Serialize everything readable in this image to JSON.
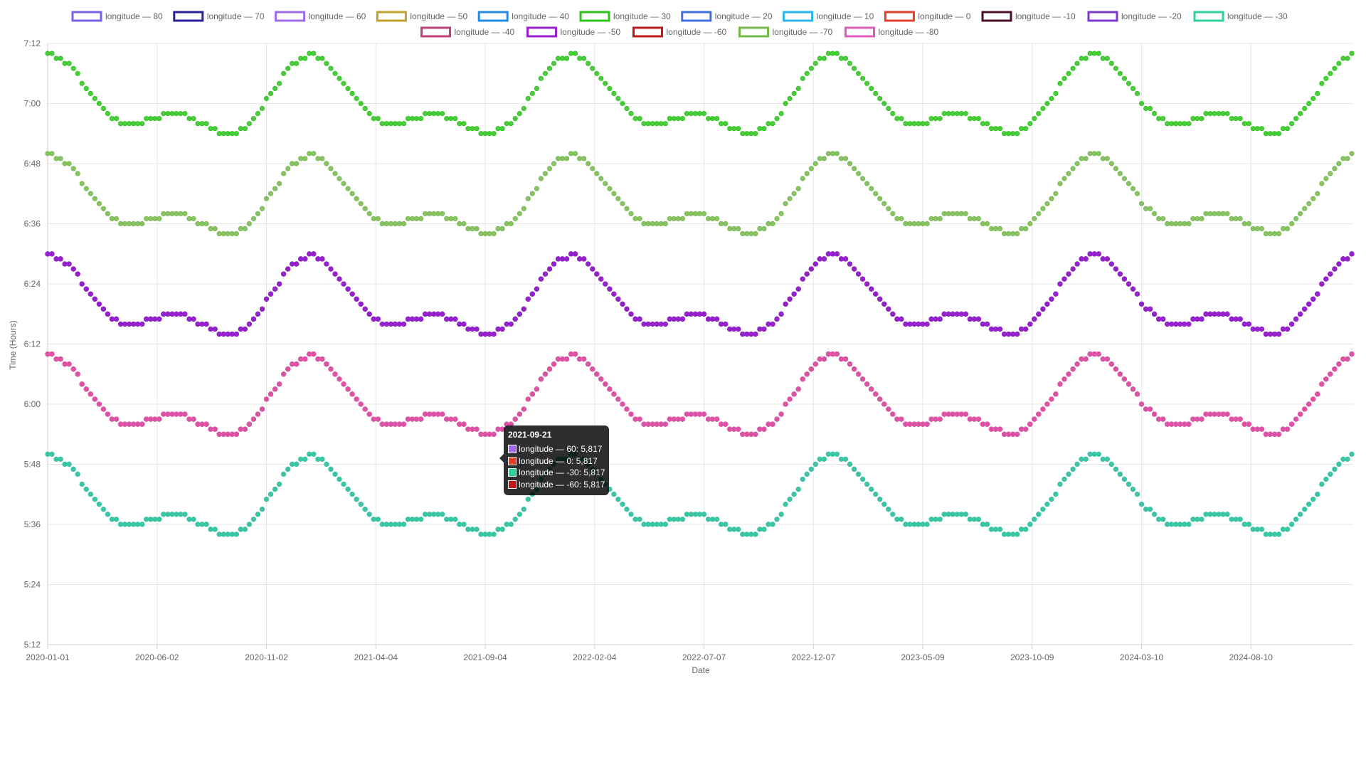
{
  "chart_data": {
    "type": "scatter",
    "xlabel": "Date",
    "ylabel": "Time (Hours)",
    "x_range": [
      "2020-01-01",
      "2024-12-31"
    ],
    "ylim": [
      5.2,
      7.2
    ],
    "y_ticks": [
      "5:12",
      "5:24",
      "5:36",
      "5:48",
      "6:00",
      "6:12",
      "6:24",
      "6:36",
      "6:48",
      "7:00",
      "7:12"
    ],
    "x_ticks": [
      "2020-01-01",
      "2020-06-02",
      "2020-11-02",
      "2021-04-04",
      "2021-09-04",
      "2022-02-04",
      "2022-07-07",
      "2022-12-07",
      "2023-05-09",
      "2023-10-09",
      "2024-03-10",
      "2024-08-10"
    ],
    "grid": true,
    "legend_position": "top",
    "series": [
      {
        "name": "longitude — 80",
        "color": "#7b61e8",
        "base": 5.667,
        "visible": true
      },
      {
        "name": "longitude — 70",
        "color": "#2a1f9e",
        "base": 6.333,
        "visible": true
      },
      {
        "name": "longitude — 60",
        "color": "#a06ae8",
        "base": 6.0,
        "visible": true
      },
      {
        "name": "longitude — 50",
        "color": "#bfa22b",
        "base": 6.667,
        "visible": false
      },
      {
        "name": "longitude — 40",
        "color": "#1f8ae0",
        "base": 6.333,
        "visible": false
      },
      {
        "name": "longitude — 30",
        "color": "#2bc31a",
        "base": 7.0,
        "visible": true
      },
      {
        "name": "longitude — 20",
        "color": "#3f6fe0",
        "base": 6.667,
        "visible": false
      },
      {
        "name": "longitude — 10",
        "color": "#2bb4e8",
        "base": 6.333,
        "visible": false
      },
      {
        "name": "longitude — 0",
        "color": "#e0402a",
        "base": 6.0,
        "visible": true
      },
      {
        "name": "longitude — -10",
        "color": "#4a0f28",
        "base": 6.333,
        "visible": true
      },
      {
        "name": "longitude — -20",
        "color": "#7a3bc8",
        "base": 6.333,
        "visible": true
      },
      {
        "name": "longitude — -30",
        "color": "#2fd09a",
        "base": 5.667,
        "visible": true
      },
      {
        "name": "longitude — -40",
        "color": "#c2407a",
        "base": 6.0,
        "visible": true
      },
      {
        "name": "longitude — -50",
        "color": "#9a1fd0",
        "base": 6.333,
        "visible": true
      },
      {
        "name": "longitude — -60",
        "color": "#c01818",
        "base": 6.0,
        "visible": true
      },
      {
        "name": "longitude — -70",
        "color": "#74b84a",
        "base": 6.667,
        "visible": true
      },
      {
        "name": "longitude — -80",
        "color": "#e05ab8",
        "base": 6.0,
        "visible": true
      }
    ],
    "tooltip": {
      "title": "2021-09-21",
      "rows": [
        {
          "label": "longitude — 60: 5,817",
          "color": "#a06ae8"
        },
        {
          "label": "longitude — 0: 5,817",
          "color": "#e0402a"
        },
        {
          "label": "longitude — -30: 5,817",
          "color": "#2fd09a"
        },
        {
          "label": "longitude — -60: 5,817",
          "color": "#c01818"
        }
      ]
    }
  }
}
